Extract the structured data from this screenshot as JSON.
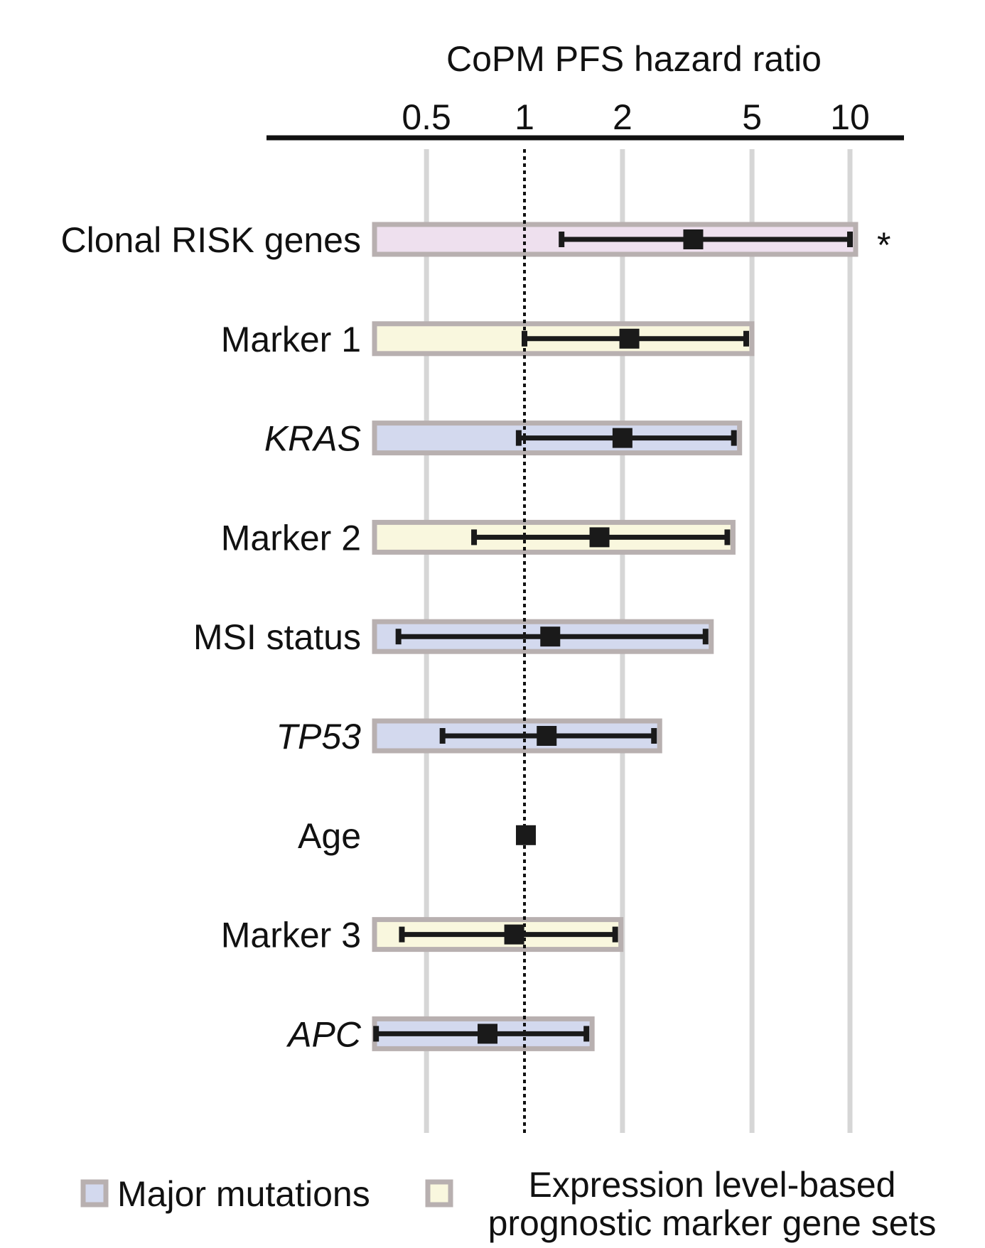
{
  "chart_data": {
    "type": "forest",
    "title": "CoPM PFS hazard ratio",
    "x_scale": "log",
    "xlim": [
      0.3,
      12
    ],
    "x_ticks": [
      {
        "value": 0.5,
        "label": "0.5"
      },
      {
        "value": 1,
        "label": "1"
      },
      {
        "value": 2,
        "label": "2"
      },
      {
        "value": 5,
        "label": "5"
      },
      {
        "value": 10,
        "label": "10"
      }
    ],
    "reference_line": 1,
    "colors": {
      "Major mutations": "#d3d9ee",
      "Expression level-based prognostic marker gene sets": "#f9f7de",
      "clonal_risk": "#eee0ee",
      "box_border": "#b8b0b0",
      "gridline": "#d6d6d6",
      "marker": "#1a1a1a"
    },
    "rows": [
      {
        "label": "Clonal RISK genes",
        "italic": false,
        "group": "clonal_risk",
        "hr": 3.3,
        "ci_low": 1.3,
        "ci_high": 10.0,
        "annotation": "*"
      },
      {
        "label": "Marker 1",
        "italic": false,
        "group": "Expression level-based prognostic marker gene sets",
        "hr": 2.1,
        "ci_low": 1.0,
        "ci_high": 4.8,
        "annotation": ""
      },
      {
        "label": "KRAS",
        "italic": true,
        "group": "Major mutations",
        "hr": 2.0,
        "ci_low": 0.96,
        "ci_high": 4.4,
        "annotation": ""
      },
      {
        "label": "Marker 2",
        "italic": false,
        "group": "Expression level-based prognostic marker gene sets",
        "hr": 1.7,
        "ci_low": 0.7,
        "ci_high": 4.2,
        "annotation": ""
      },
      {
        "label": "MSI status",
        "italic": false,
        "group": "Major mutations",
        "hr": 1.2,
        "ci_low": 0.41,
        "ci_high": 3.6,
        "annotation": ""
      },
      {
        "label": "TP53",
        "italic": true,
        "group": "Major mutations",
        "hr": 1.17,
        "ci_low": 0.56,
        "ci_high": 2.5,
        "annotation": ""
      },
      {
        "label": "Age",
        "italic": false,
        "group": "none",
        "hr": 1.01,
        "ci_low": 1.0,
        "ci_high": 1.02,
        "annotation": ""
      },
      {
        "label": "Marker 3",
        "italic": false,
        "group": "Expression level-based prognostic marker gene sets",
        "hr": 0.93,
        "ci_low": 0.42,
        "ci_high": 1.9,
        "annotation": ""
      },
      {
        "label": "APC",
        "italic": true,
        "group": "Major mutations",
        "hr": 0.77,
        "ci_low": 0.35,
        "ci_high": 1.55,
        "annotation": ""
      }
    ],
    "legend": {
      "placement": "bottom",
      "entries": [
        {
          "label": "Major mutations",
          "color": "#d3d9ee"
        },
        {
          "label": "Expression level-based prognostic marker gene sets",
          "lines": [
            "Expression level-based",
            "prognostic marker gene sets"
          ],
          "color": "#f9f7de"
        }
      ]
    }
  }
}
